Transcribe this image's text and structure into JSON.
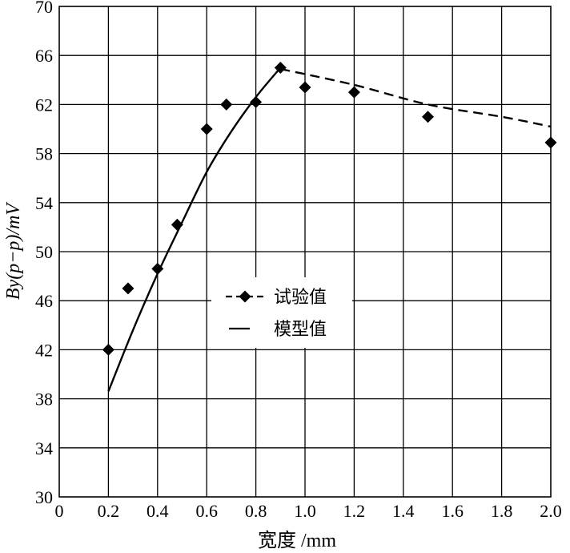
{
  "chart_data": {
    "type": "scatter",
    "title": "",
    "xlabel": "宽度 /mm",
    "ylabel": "By(p−p)/mV",
    "xlim": [
      0,
      2.0
    ],
    "ylim": [
      30,
      70
    ],
    "xticks": [
      0,
      0.2,
      0.4,
      0.6,
      0.8,
      1.0,
      1.2,
      1.4,
      1.6,
      1.8,
      2.0
    ],
    "xtick_labels": [
      "0",
      "0.2",
      "0.4",
      "0.6",
      "0.8",
      "1.0",
      "1.2",
      "1.4",
      "1.6",
      "1.8",
      "2.0"
    ],
    "yticks": [
      30,
      34,
      38,
      42,
      46,
      50,
      54,
      58,
      62,
      66,
      70
    ],
    "ytick_labels": [
      "30",
      "34",
      "38",
      "42",
      "46",
      "50",
      "54",
      "58",
      "62",
      "66",
      "70"
    ],
    "grid": true,
    "legend_position": "center",
    "series": [
      {
        "name": "试验值",
        "marker": "diamond",
        "x": [
          0.2,
          0.28,
          0.4,
          0.48,
          0.6,
          0.68,
          0.8,
          0.9,
          1.0,
          1.2,
          1.5,
          2.0
        ],
        "y": [
          42.0,
          47.0,
          48.6,
          52.2,
          60.0,
          62.0,
          62.2,
          65.0,
          63.4,
          63.0,
          61.0,
          58.9
        ]
      },
      {
        "name": "模型值",
        "line": "solid",
        "x": [
          0.2,
          0.3,
          0.4,
          0.5,
          0.6,
          0.7,
          0.8,
          0.9
        ],
        "y": [
          38.6,
          43.6,
          48.2,
          52.4,
          56.5,
          59.8,
          62.6,
          65.0
        ]
      },
      {
        "line": "dashed",
        "x": [
          0.9,
          1.2,
          1.5,
          1.8,
          2.0
        ],
        "y": [
          64.9,
          63.6,
          62.0,
          61.0,
          60.2
        ]
      }
    ]
  }
}
